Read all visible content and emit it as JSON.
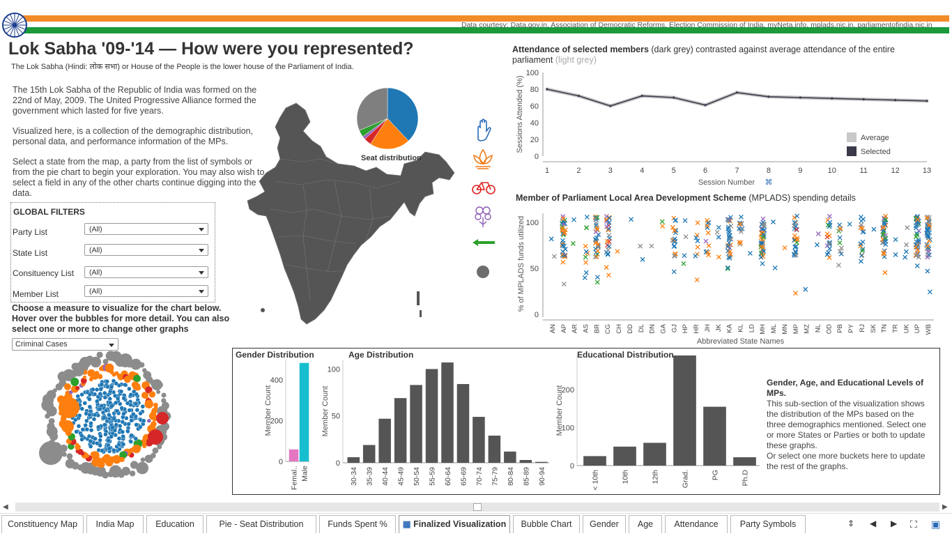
{
  "header": {
    "data_courtesy": "Data courtesy: Data.gov.in, Association of Democratic Reforms, Election Commission of India, myNeta.info, mplads.nic.in, parliamentofindia.nic.in",
    "title": "Lok Sabha '09-'14 — How were you represented?",
    "subtitle": "The Lok Sabha (Hindi: लोक सभा) or House of the People is the lower house of the Parliament of India.",
    "colors": {
      "saffron": "#f28c28",
      "green": "#1a9a3a",
      "chakra": "#1a3c8f"
    }
  },
  "intro": {
    "p1": "The 15th Lok Sabha of the Republic of India was formed on the 22nd of May, 2009. The United Progressive Alliance formed the government which lasted for five years.",
    "p2": "Visualized here, is a collection of the demographic distribution, personal data, and performance information of the MPs.",
    "p3": "Select a state from the map, a party from the list of symbols or from the pie chart to begin your exploration. You may also wish to select a field in any of the other charts continue digging into the data."
  },
  "filters": {
    "heading": "GLOBAL FILTERS",
    "items": [
      {
        "label": "Party List",
        "value": "(All)"
      },
      {
        "label": "State List",
        "value": "(All)"
      },
      {
        "label": "Consituency List",
        "value": "(All)"
      },
      {
        "label": "Member List",
        "value": "(All)"
      }
    ]
  },
  "measure": {
    "help": "Choose a measure to visualize for the chart below. Hover over the bubbles for more detail. You can also select one or more to change other graphs",
    "value": "Criminal Cases"
  },
  "pie": {
    "label": "Seat distribution",
    "slices": [
      {
        "value": 206,
        "color": "#1f77b4"
      },
      {
        "value": 116,
        "color": "#ff7f0e"
      },
      {
        "value": 21,
        "color": "#d62728"
      },
      {
        "value": 9,
        "color": "#9467bd"
      },
      {
        "value": 20,
        "color": "#2ca02c"
      },
      {
        "value": 170,
        "color": "#7f7f7f"
      }
    ]
  },
  "party_symbols": [
    "hand-icon",
    "lotus-icon",
    "bicycle-icon",
    "flower-icon",
    "arrow-icon",
    "others-icon"
  ],
  "attendance": {
    "title_bold": "Attendance of selected members",
    "title_dark": " (dark grey)",
    "title_rest": " contrasted against average attendance of the entire parliament ",
    "title_light": "(light grey)",
    "ylabel": "Sessions Attended (%)",
    "xlabel": "Session Number",
    "legend": [
      "Average",
      "Selected"
    ],
    "colors": {
      "average": "#c8c8c8",
      "selected": "#3a3a4a"
    }
  },
  "mplads": {
    "title_bold": "Member of Parliament Local Area Development Scheme",
    "title_rest": " (MPLADS) spending details",
    "ylabel": "% of MPLADS funds utilized",
    "xlabel": "Abbreviated State Names",
    "states": [
      "AN",
      "AP",
      "AR",
      "AS",
      "BR",
      "CG",
      "CH",
      "DD",
      "DL",
      "DN",
      "GA",
      "GJ",
      "HP",
      "HR",
      "JH",
      "JK",
      "KA",
      "KL",
      "LD",
      "MH",
      "ML",
      "MN",
      "MP",
      "MZ",
      "NL",
      "OD",
      "PB",
      "PY",
      "RJ",
      "SK",
      "TN",
      "TR",
      "UK",
      "UP",
      "WB"
    ]
  },
  "chart_data": [
    {
      "type": "line",
      "x": [
        1,
        2,
        3,
        4,
        5,
        6,
        7,
        8,
        9,
        10,
        11,
        12,
        13
      ],
      "series": [
        {
          "name": "Average",
          "values": [
            80,
            72,
            60,
            72,
            70,
            61,
            76,
            71,
            70,
            69,
            68,
            67,
            66
          ]
        },
        {
          "name": "Selected",
          "values": [
            80,
            72,
            60,
            72,
            70,
            61,
            76,
            71,
            70,
            69,
            68,
            67,
            66
          ]
        }
      ],
      "xlabel": "Session Number",
      "ylabel": "Sessions Attended (%)",
      "ylim": [
        0,
        100
      ],
      "yticks": [
        0,
        20,
        40,
        60,
        80,
        100
      ]
    },
    {
      "type": "bar",
      "title": "Gender Distribution",
      "categories": [
        "Femal..",
        "Male"
      ],
      "values": [
        59,
        484
      ],
      "ylabel": "Member Count",
      "ylim": [
        0,
        500
      ],
      "yticks": [
        0,
        200,
        400
      ],
      "colors": [
        "#e377c2",
        "#17becf"
      ]
    },
    {
      "type": "bar",
      "title": "Age Distribution",
      "categories": [
        "30-34",
        "35-39",
        "40-44",
        "45-49",
        "50-54",
        "55-59",
        "60-64",
        "65-69",
        "70-74",
        "75-79",
        "80-84",
        "85-89",
        "90-94"
      ],
      "values": [
        6,
        19,
        47,
        69,
        83,
        100,
        107,
        84,
        49,
        29,
        12,
        3,
        1
      ],
      "ylabel": "Member Count",
      "ylim": [
        0,
        110
      ],
      "yticks": [
        0,
        50,
        100
      ]
    },
    {
      "type": "bar",
      "title": "Educational Distribution",
      "categories": [
        "< 10th",
        "10th",
        "12th",
        "Grad.",
        "PG",
        "Ph.D"
      ],
      "values": [
        25,
        50,
        60,
        290,
        155,
        22
      ],
      "ylabel": "Member Count",
      "ylim": [
        0,
        290
      ],
      "yticks": [
        0,
        100,
        200
      ]
    },
    {
      "type": "scatter",
      "title": "Member of Parliament Local Area Development Scheme (MPLADS) spending details",
      "xlabel": "Abbreviated State Names",
      "ylabel": "% of MPLADS funds utilized",
      "ylim": [
        0,
        110
      ],
      "yticks": [
        0,
        50,
        100
      ]
    }
  ],
  "demographics": {
    "note_title": "Gender, Age, and Educational Levels of MPs.",
    "note_body": "This sub-section of the visualization shows the distribution of the MPs based on the three demographics mentioned. Select one or more States or Parties or both to update these graphs.",
    "note_body2": "Or select one more buckets here to update the rest of the graphs."
  },
  "tabs": [
    {
      "label": "Constituency Map"
    },
    {
      "label": "India Map"
    },
    {
      "label": "Education"
    },
    {
      "label": "Pie - Seat Distribution"
    },
    {
      "label": "Funds Spent %"
    },
    {
      "label": "Finalized Visualization",
      "active": true
    },
    {
      "label": "Bubble Chart"
    },
    {
      "label": "Gender"
    },
    {
      "label": "Age"
    },
    {
      "label": "Attendance"
    },
    {
      "label": "Party Symbols"
    }
  ]
}
